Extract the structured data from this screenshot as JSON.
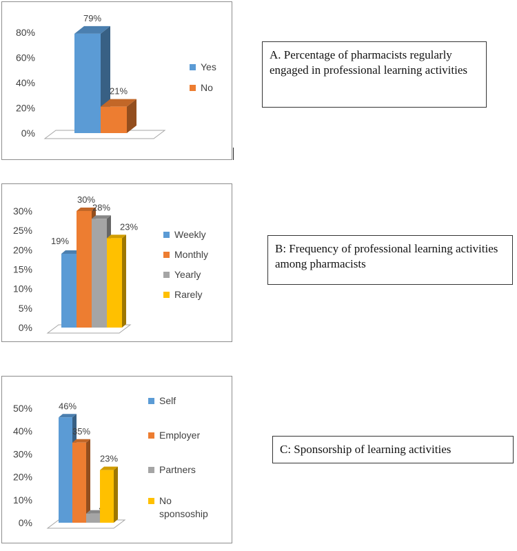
{
  "chart_data": [
    {
      "type": "bar",
      "categories": [
        "Yes",
        "No"
      ],
      "values": [
        79,
        21
      ],
      "value_labels": [
        "79%",
        "21%"
      ],
      "ylim": [
        0,
        80
      ],
      "ytick_labels": [
        "0%",
        "20%",
        "40%",
        "60%",
        "80%"
      ],
      "legend": [
        "Yes",
        "No"
      ],
      "colors": [
        "#5b9bd5",
        "#ed7d31"
      ],
      "legend_placement": "right",
      "caption": "A. Percentage of pharmacists regularly engaged in professional learning activities"
    },
    {
      "type": "bar",
      "categories": [
        "Weekly",
        "Monthly",
        "Yearly",
        "Rarely"
      ],
      "values": [
        19,
        30,
        28,
        23
      ],
      "value_labels": [
        "19%",
        "30%",
        "28%",
        "23%"
      ],
      "ylim": [
        0,
        30
      ],
      "ytick_labels": [
        "0%",
        "5%",
        "10%",
        "15%",
        "20%",
        "25%",
        "30%"
      ],
      "legend": [
        "Weekly",
        "Monthly",
        "Yearly",
        "Rarely"
      ],
      "colors": [
        "#5b9bd5",
        "#ed7d31",
        "#a5a5a5",
        "#ffc000"
      ],
      "legend_placement": "right",
      "caption": "B: Frequency of professional learning activities among pharmacists"
    },
    {
      "type": "bar",
      "categories": [
        "Self",
        "Employer",
        "Partners",
        "No sponsoship"
      ],
      "values": [
        46,
        35,
        4,
        23
      ],
      "value_labels": [
        "46%",
        "35%",
        "4%",
        "23%"
      ],
      "ylim": [
        0,
        50
      ],
      "ytick_labels": [
        "0%",
        "10%",
        "20%",
        "30%",
        "40%",
        "50%"
      ],
      "legend": [
        "Self",
        "Employer",
        "Partners",
        "No sponsoship"
      ],
      "colors": [
        "#5b9bd5",
        "#ed7d31",
        "#a5a5a5",
        "#ffc000"
      ],
      "legend_placement": "right",
      "caption": "C: Sponsorship of learning activities"
    }
  ]
}
